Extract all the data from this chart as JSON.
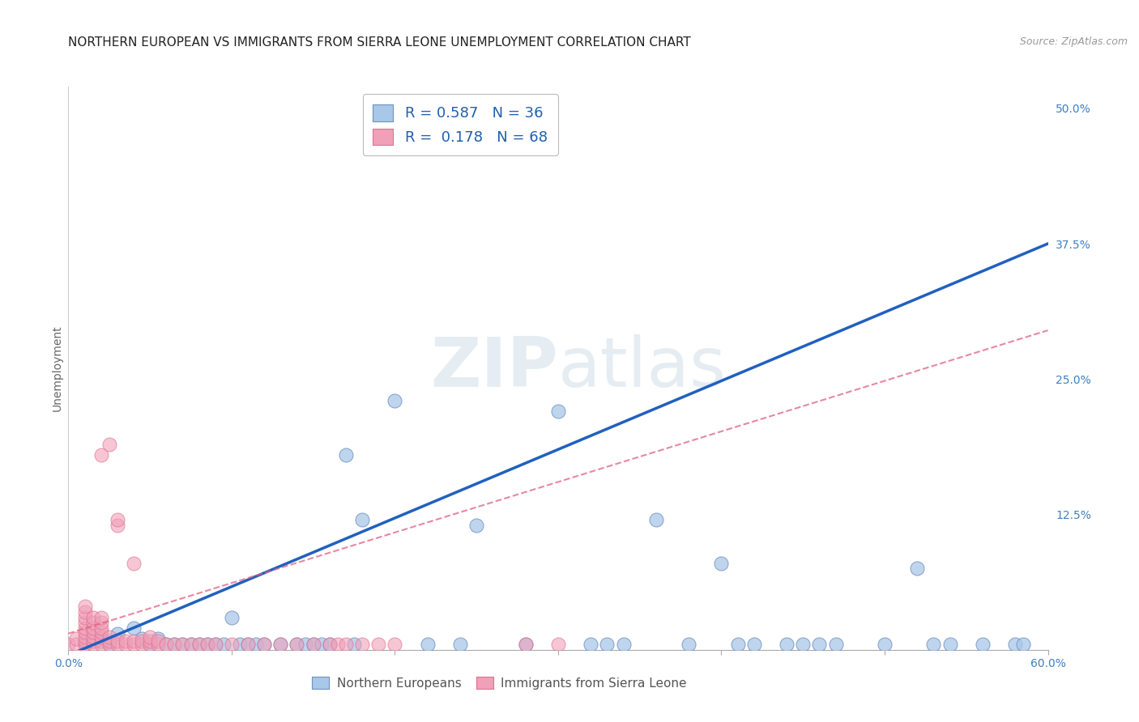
{
  "title": "NORTHERN EUROPEAN VS IMMIGRANTS FROM SIERRA LEONE UNEMPLOYMENT CORRELATION CHART",
  "source": "Source: ZipAtlas.com",
  "ylabel": "Unemployment",
  "xlim": [
    0.0,
    0.6
  ],
  "ylim": [
    0.0,
    0.52
  ],
  "x_ticks": [
    0.0,
    0.1,
    0.2,
    0.3,
    0.4,
    0.5,
    0.6
  ],
  "x_tick_labels": [
    "0.0%",
    "",
    "",
    "",
    "",
    "",
    "60.0%"
  ],
  "y_ticks": [
    0.125,
    0.25,
    0.375,
    0.5
  ],
  "y_tick_labels": [
    "12.5%",
    "25.0%",
    "37.5%",
    "50.0%"
  ],
  "blue_color": "#a8c8e8",
  "pink_color": "#f0a0b8",
  "blue_edge_color": "#7090c0",
  "pink_edge_color": "#e07090",
  "blue_line_color": "#2060c0",
  "pink_line_color": "#e06080",
  "right_tick_color": "#4080c0",
  "grid_color": "#cccccc",
  "background_color": "#ffffff",
  "watermark": "ZIPatlas",
  "title_fontsize": 11,
  "tick_fontsize": 10,
  "blue_line_x0": 0.0,
  "blue_line_x1": 0.6,
  "blue_line_y0": -0.005,
  "blue_line_y1": 0.375,
  "pink_line_x0": 0.0,
  "pink_line_x1": 0.6,
  "pink_line_y0": 0.015,
  "pink_line_y1": 0.295,
  "blue_points": [
    [
      0.01,
      0.005
    ],
    [
      0.02,
      0.01
    ],
    [
      0.025,
      0.005
    ],
    [
      0.03,
      0.015
    ],
    [
      0.04,
      0.02
    ],
    [
      0.045,
      0.01
    ],
    [
      0.05,
      0.005
    ],
    [
      0.055,
      0.01
    ],
    [
      0.06,
      0.005
    ],
    [
      0.065,
      0.005
    ],
    [
      0.07,
      0.005
    ],
    [
      0.075,
      0.005
    ],
    [
      0.08,
      0.005
    ],
    [
      0.085,
      0.005
    ],
    [
      0.09,
      0.005
    ],
    [
      0.095,
      0.005
    ],
    [
      0.1,
      0.03
    ],
    [
      0.105,
      0.005
    ],
    [
      0.11,
      0.005
    ],
    [
      0.115,
      0.005
    ],
    [
      0.12,
      0.005
    ],
    [
      0.13,
      0.005
    ],
    [
      0.14,
      0.005
    ],
    [
      0.145,
      0.005
    ],
    [
      0.15,
      0.005
    ],
    [
      0.155,
      0.005
    ],
    [
      0.16,
      0.005
    ],
    [
      0.17,
      0.18
    ],
    [
      0.175,
      0.005
    ],
    [
      0.18,
      0.12
    ],
    [
      0.2,
      0.23
    ],
    [
      0.22,
      0.005
    ],
    [
      0.24,
      0.005
    ],
    [
      0.25,
      0.115
    ],
    [
      0.28,
      0.005
    ],
    [
      0.3,
      0.22
    ],
    [
      0.32,
      0.005
    ],
    [
      0.33,
      0.005
    ],
    [
      0.34,
      0.005
    ],
    [
      0.36,
      0.12
    ],
    [
      0.38,
      0.005
    ],
    [
      0.4,
      0.08
    ],
    [
      0.41,
      0.005
    ],
    [
      0.42,
      0.005
    ],
    [
      0.44,
      0.005
    ],
    [
      0.45,
      0.005
    ],
    [
      0.46,
      0.005
    ],
    [
      0.47,
      0.005
    ],
    [
      0.5,
      0.005
    ],
    [
      0.52,
      0.075
    ],
    [
      0.53,
      0.005
    ],
    [
      0.54,
      0.005
    ],
    [
      0.56,
      0.005
    ],
    [
      0.58,
      0.005
    ],
    [
      0.585,
      0.005
    ]
  ],
  "pink_points": [
    [
      0.0,
      0.005
    ],
    [
      0.005,
      0.005
    ],
    [
      0.005,
      0.01
    ],
    [
      0.01,
      0.005
    ],
    [
      0.01,
      0.008
    ],
    [
      0.01,
      0.012
    ],
    [
      0.01,
      0.016
    ],
    [
      0.01,
      0.02
    ],
    [
      0.01,
      0.025
    ],
    [
      0.01,
      0.03
    ],
    [
      0.01,
      0.035
    ],
    [
      0.01,
      0.04
    ],
    [
      0.015,
      0.005
    ],
    [
      0.015,
      0.008
    ],
    [
      0.015,
      0.012
    ],
    [
      0.015,
      0.016
    ],
    [
      0.015,
      0.02
    ],
    [
      0.015,
      0.025
    ],
    [
      0.015,
      0.03
    ],
    [
      0.02,
      0.005
    ],
    [
      0.02,
      0.008
    ],
    [
      0.02,
      0.012
    ],
    [
      0.02,
      0.016
    ],
    [
      0.02,
      0.02
    ],
    [
      0.02,
      0.025
    ],
    [
      0.02,
      0.03
    ],
    [
      0.02,
      0.18
    ],
    [
      0.025,
      0.005
    ],
    [
      0.025,
      0.008
    ],
    [
      0.025,
      0.012
    ],
    [
      0.025,
      0.19
    ],
    [
      0.03,
      0.005
    ],
    [
      0.03,
      0.008
    ],
    [
      0.03,
      0.115
    ],
    [
      0.03,
      0.12
    ],
    [
      0.035,
      0.005
    ],
    [
      0.035,
      0.008
    ],
    [
      0.04,
      0.005
    ],
    [
      0.04,
      0.008
    ],
    [
      0.04,
      0.08
    ],
    [
      0.045,
      0.005
    ],
    [
      0.045,
      0.008
    ],
    [
      0.05,
      0.005
    ],
    [
      0.05,
      0.008
    ],
    [
      0.05,
      0.012
    ],
    [
      0.055,
      0.005
    ],
    [
      0.055,
      0.008
    ],
    [
      0.06,
      0.005
    ],
    [
      0.065,
      0.005
    ],
    [
      0.07,
      0.005
    ],
    [
      0.075,
      0.005
    ],
    [
      0.08,
      0.005
    ],
    [
      0.085,
      0.005
    ],
    [
      0.09,
      0.005
    ],
    [
      0.1,
      0.005
    ],
    [
      0.11,
      0.005
    ],
    [
      0.12,
      0.005
    ],
    [
      0.13,
      0.005
    ],
    [
      0.14,
      0.005
    ],
    [
      0.15,
      0.005
    ],
    [
      0.16,
      0.005
    ],
    [
      0.165,
      0.005
    ],
    [
      0.17,
      0.005
    ],
    [
      0.18,
      0.005
    ],
    [
      0.19,
      0.005
    ],
    [
      0.2,
      0.005
    ],
    [
      0.28,
      0.005
    ],
    [
      0.3,
      0.005
    ]
  ]
}
